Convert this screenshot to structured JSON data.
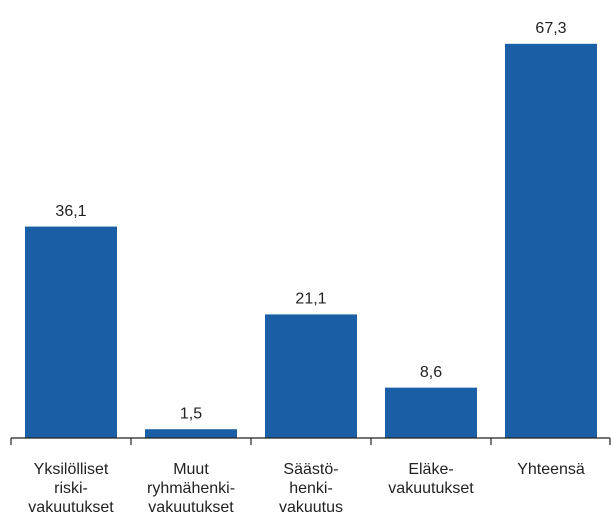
{
  "chart_data": {
    "type": "bar",
    "categories": [
      [
        "Yksilölliset",
        "riski-",
        "vakuutukset"
      ],
      [
        "Muut",
        "ryhmähenki-",
        "vakuutukset"
      ],
      [
        "Säästö-",
        "henki-",
        "vakuutus"
      ],
      [
        "Eläke-",
        "vakuutukset"
      ],
      [
        "Yhteensä"
      ]
    ],
    "values": [
      36.1,
      1.5,
      21.1,
      8.6,
      67.3
    ],
    "value_labels": [
      "36,1",
      "1,5",
      "21,1",
      "8,6",
      "67,3"
    ],
    "color": "#1a5fa6",
    "ylim": [
      0,
      70
    ]
  }
}
